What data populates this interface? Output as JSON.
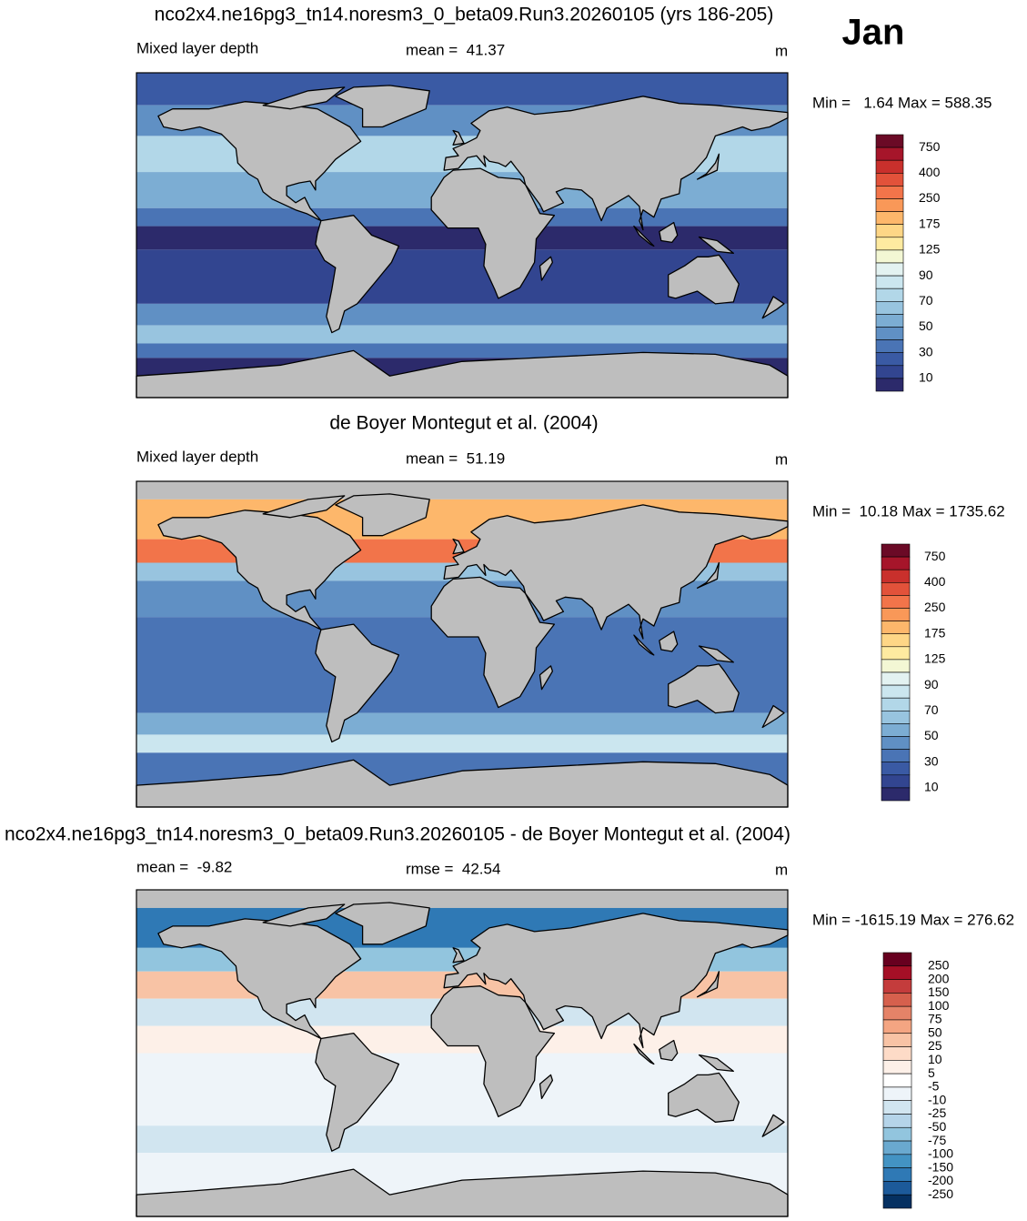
{
  "month": "Jan",
  "panels": [
    {
      "title": "nco2x4.ne16pg3_tn14.noresm3_0_beta09.Run3.20260105 (yrs 186-205)",
      "left_label": "Mixed layer depth",
      "center_label": "mean =  41.37",
      "units": "m",
      "range_label": "Min =   1.64 Max = 588.35",
      "colorbar": {
        "labels": [
          "750",
          "400",
          "250",
          "175",
          "125",
          "90",
          "70",
          "50",
          "30",
          "10"
        ],
        "colors": [
          "#6b0a26",
          "#a6152a",
          "#c9302c",
          "#e2523a",
          "#f2744a",
          "#f99858",
          "#fdb76b",
          "#fed686",
          "#feeaa0",
          "#f3f7d4",
          "#e3f2f1",
          "#cbe6ef",
          "#b2d7e8",
          "#98c4df",
          "#7cadd3",
          "#6090c4",
          "#4a74b5",
          "#3a5aa4",
          "#324590",
          "#2c2a6b"
        ]
      }
    },
    {
      "title": "de Boyer Montegut et al. (2004)",
      "left_label": "Mixed layer depth",
      "center_label": "mean =  51.19",
      "units": "m",
      "range_label": "Min =  10.18 Max = 1735.62",
      "colorbar": {
        "labels": [
          "750",
          "400",
          "250",
          "175",
          "125",
          "90",
          "70",
          "50",
          "30",
          "10"
        ],
        "colors": [
          "#6b0a26",
          "#a6152a",
          "#c9302c",
          "#e2523a",
          "#f2744a",
          "#f99858",
          "#fdb76b",
          "#fed686",
          "#feeaa0",
          "#f3f7d4",
          "#e3f2f1",
          "#cbe6ef",
          "#b2d7e8",
          "#98c4df",
          "#7cadd3",
          "#6090c4",
          "#4a74b5",
          "#3a5aa4",
          "#324590",
          "#2c2a6b"
        ]
      }
    },
    {
      "title": "nco2x4.ne16pg3_tn14.noresm3_0_beta09.Run3.20260105 - de Boyer Montegut et al. (2004)",
      "left_label": "mean =  -9.82",
      "center_label": "rmse =  42.54",
      "units": "m",
      "range_label": "Min = -1615.19 Max = 276.62",
      "colorbar": {
        "labels": [
          "250",
          "200",
          "150",
          "100",
          "75",
          "50",
          "25",
          "10",
          "5",
          "-5",
          "-10",
          "-25",
          "-50",
          "-75",
          "-100",
          "-150",
          "-200",
          "-250"
        ],
        "colors": [
          "#67001f",
          "#a50f26",
          "#c43c3c",
          "#d6604d",
          "#e58368",
          "#f4a582",
          "#f8c3a5",
          "#fddbc7",
          "#fdf0e8",
          "#ffffff",
          "#eef4f9",
          "#d1e5f0",
          "#b5d4e9",
          "#92c5de",
          "#6aa9cf",
          "#4393c3",
          "#2f79b5",
          "#1c5a9a",
          "#053061"
        ]
      }
    }
  ]
}
